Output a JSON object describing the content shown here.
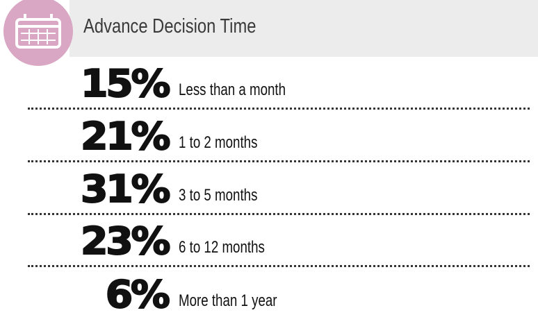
{
  "header": {
    "title": "Advance Decision Time"
  },
  "items": [
    {
      "percent": "15%",
      "label": "Less than a month"
    },
    {
      "percent": "21%",
      "label": "1 to 2 months"
    },
    {
      "percent": "31%",
      "label": "3 to 5 months"
    },
    {
      "percent": "23%",
      "label": "6 to 12 months"
    },
    {
      "percent": "6%",
      "label": "More than 1 year"
    }
  ]
}
